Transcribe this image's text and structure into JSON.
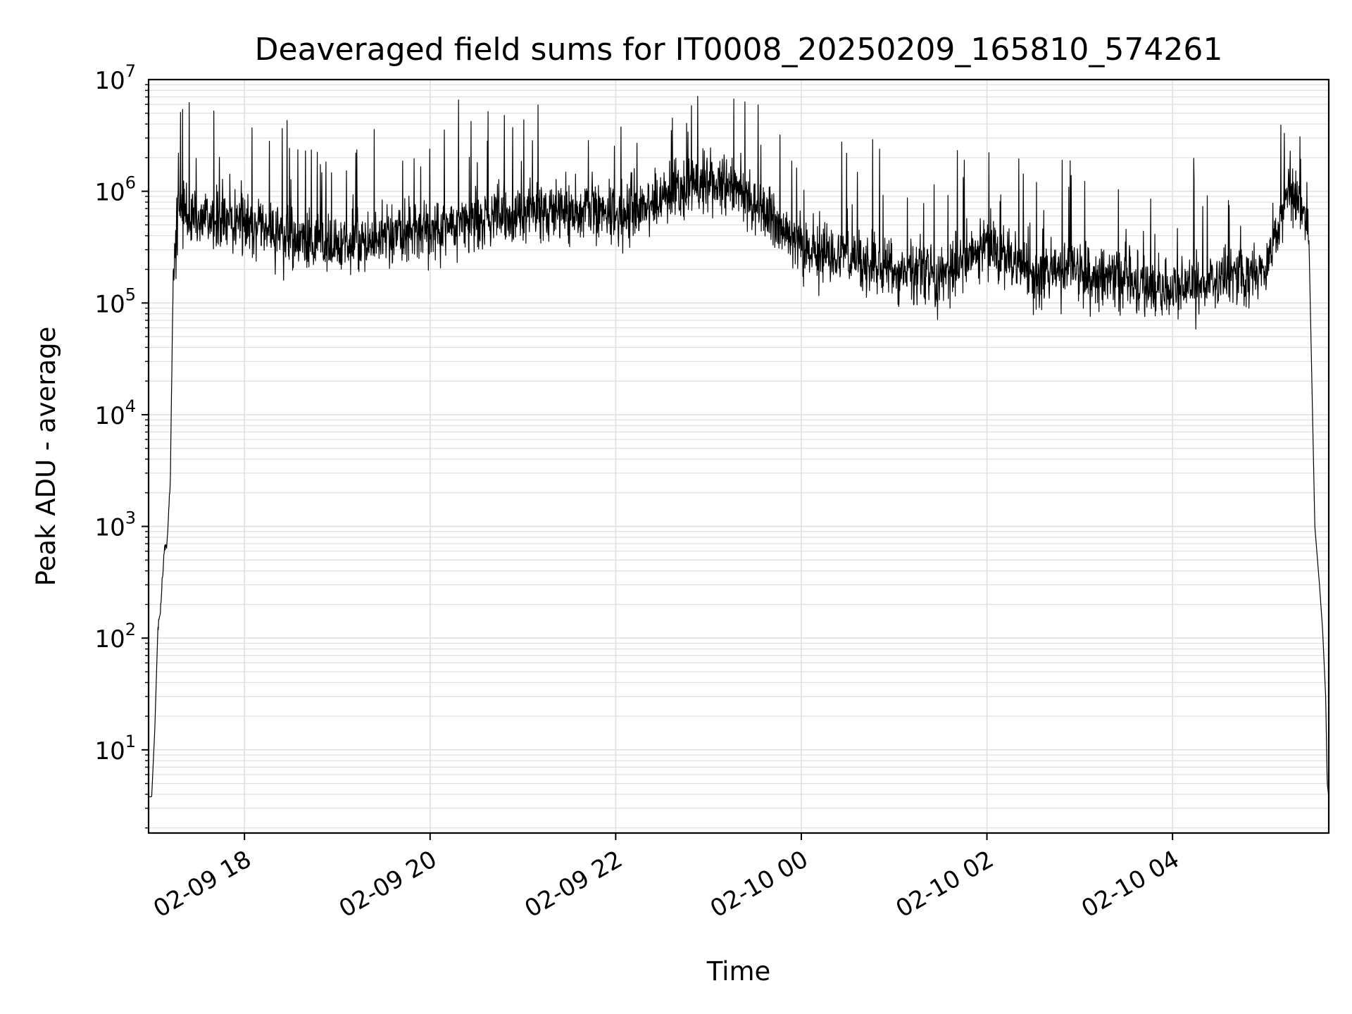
{
  "chart_data": {
    "type": "line",
    "title": "Deaveraged field sums for IT0008_20250209_165810_574261",
    "xlabel": "Time",
    "ylabel": "Peak ADU - average",
    "y_scale": "log",
    "ylim": [
      1.8,
      10000000
    ],
    "xlim": [
      "2025-02-09 16:58",
      "2025-02-10 05:41"
    ],
    "x_ticks": [
      {
        "t": "2025-02-09 18:00",
        "label": "02-09 18"
      },
      {
        "t": "2025-02-09 20:00",
        "label": "02-09 20"
      },
      {
        "t": "2025-02-09 22:00",
        "label": "02-09 22"
      },
      {
        "t": "2025-02-10 00:00",
        "label": "02-10 00"
      },
      {
        "t": "2025-02-10 02:00",
        "label": "02-10 02"
      },
      {
        "t": "2025-02-10 04:00",
        "label": "02-10 04"
      }
    ],
    "y_ticks": [
      {
        "value": 10,
        "base": "10",
        "exp": "1"
      },
      {
        "value": 100,
        "base": "10",
        "exp": "2"
      },
      {
        "value": 1000,
        "base": "10",
        "exp": "3"
      },
      {
        "value": 10000,
        "base": "10",
        "exp": "4"
      },
      {
        "value": 100000,
        "base": "10",
        "exp": "5"
      },
      {
        "value": 1000000,
        "base": "10",
        "exp": "6"
      },
      {
        "value": 10000000,
        "base": "10",
        "exp": "7"
      }
    ],
    "grid": true,
    "line_color": "#000000",
    "grid_color": "#e0e0e0",
    "series": [
      {
        "x": [
          "2025-02-09 16:58",
          "2025-02-09 17:00",
          "2025-02-09 17:02",
          "2025-02-09 17:04",
          "2025-02-09 17:06",
          "2025-02-09 17:08",
          "2025-02-09 17:10",
          "2025-02-09 17:12",
          "2025-02-09 17:14",
          "2025-02-09 17:18",
          "2025-02-09 17:25",
          "2025-02-09 17:40",
          "2025-02-09 18:00",
          "2025-02-09 18:30",
          "2025-02-09 19:00",
          "2025-02-09 19:30",
          "2025-02-09 20:00",
          "2025-02-09 20:30",
          "2025-02-09 21:00",
          "2025-02-09 21:30",
          "2025-02-09 22:00",
          "2025-02-09 22:30",
          "2025-02-09 23:00",
          "2025-02-09 23:30",
          "2025-02-10 00:00",
          "2025-02-10 00:30",
          "2025-02-10 01:00",
          "2025-02-10 01:30",
          "2025-02-10 02:00",
          "2025-02-10 02:30",
          "2025-02-10 03:00",
          "2025-02-10 03:30",
          "2025-02-10 04:00",
          "2025-02-10 04:30",
          "2025-02-10 05:00",
          "2025-02-10 05:14",
          "2025-02-10 05:22",
          "2025-02-10 05:28",
          "2025-02-10 05:32",
          "2025-02-10 05:35",
          "2025-02-10 05:37",
          "2025-02-10 05:39",
          "2025-02-10 05:40",
          "2025-02-10 05:41"
        ],
        "y": [
          3.8,
          3.8,
          15,
          120,
          200,
          600,
          700,
          2500,
          200000,
          700000,
          600000,
          550000,
          500000,
          380000,
          350000,
          400000,
          450000,
          550000,
          650000,
          700000,
          600000,
          900000,
          1300000,
          800000,
          300000,
          250000,
          200000,
          180000,
          320000,
          180000,
          200000,
          150000,
          130000,
          160000,
          200000,
          900000,
          1000000,
          500000,
          1000,
          300,
          120,
          30,
          5,
          3.8
        ]
      }
    ]
  }
}
